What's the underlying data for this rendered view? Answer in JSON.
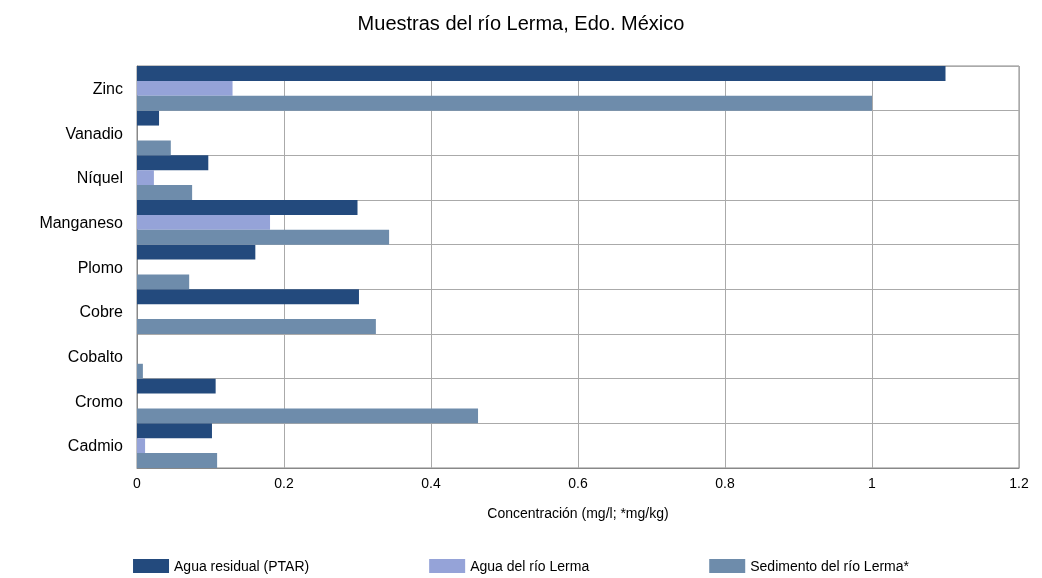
{
  "chart_data": {
    "type": "bar",
    "orientation": "horizontal",
    "title": "Muestras del río Lerma, Edo. México",
    "xlabel": "Concentración (mg/l; *mg/kg)",
    "categories": [
      "Zinc",
      "Vanadio",
      "Níquel",
      "Manganeso",
      "Plomo",
      "Cobre",
      "Cobalto",
      "Cromo",
      "Cadmio"
    ],
    "series": [
      {
        "name": "Agua residual (PTAR)",
        "color": "#234a7d",
        "values": [
          1.1,
          0.03,
          0.097,
          0.3,
          0.161,
          0.302,
          null,
          0.107,
          0.102
        ]
      },
      {
        "name": "Agua del río Lerma",
        "color": "#95a3d8",
        "values": [
          0.13,
          null,
          0.023,
          0.181,
          null,
          null,
          null,
          null,
          0.011
        ]
      },
      {
        "name": "Sedimento del río Lerma*",
        "color": "#6e8cab",
        "values": [
          1.0,
          0.046,
          0.075,
          0.343,
          0.071,
          0.325,
          0.008,
          0.464,
          0.109
        ]
      }
    ],
    "xlim": [
      0,
      1.2
    ],
    "xticks": [
      0,
      0.2,
      0.4,
      0.6,
      0.8,
      1,
      1.2
    ],
    "grid": true,
    "legend": "bottom"
  }
}
